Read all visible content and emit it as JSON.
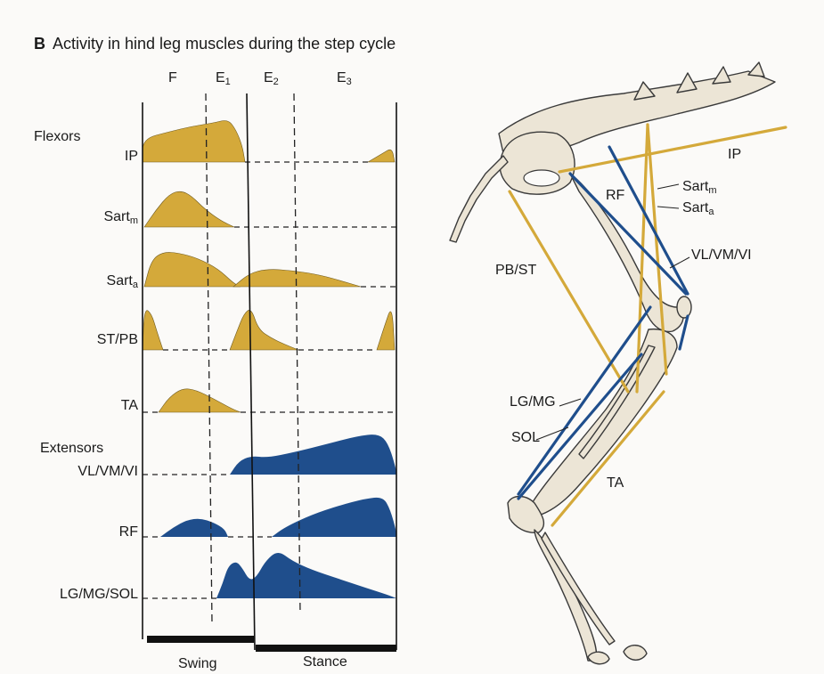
{
  "title": {
    "letter": "B",
    "text": "Activity in hind leg muscles during the step cycle"
  },
  "phases": [
    {
      "name": "F",
      "sub": ""
    },
    {
      "name": "E",
      "sub": "1"
    },
    {
      "name": "E",
      "sub": "2"
    },
    {
      "name": "E",
      "sub": "3"
    }
  ],
  "groups": {
    "flexors": "Flexors",
    "extensors": "Extensors"
  },
  "rows": [
    {
      "name": "IP",
      "sub": "",
      "type": "flexor"
    },
    {
      "name": "Sart",
      "sub": "m",
      "type": "flexor"
    },
    {
      "name": "Sart",
      "sub": "a",
      "type": "flexor"
    },
    {
      "name": "ST/PB",
      "sub": "",
      "type": "flexor"
    },
    {
      "name": "TA",
      "sub": "",
      "type": "flexor"
    },
    {
      "name": "VL/VM/VI",
      "sub": "",
      "type": "extensor"
    },
    {
      "name": "RF",
      "sub": "",
      "type": "extensor"
    },
    {
      "name": "LG/MG/SOL",
      "sub": "",
      "type": "extensor"
    }
  ],
  "cycle": {
    "swing": "Swing",
    "stance": "Stance"
  },
  "leg_labels": {
    "ip": "IP",
    "rf": "RF",
    "sartm": {
      "name": "Sart",
      "sub": "m"
    },
    "sarta": {
      "name": "Sart",
      "sub": "a"
    },
    "vl": "VL/VM/VI",
    "pbst": "PB/ST",
    "lgmg": "LG/MG",
    "sol": "SOL",
    "ta": "TA"
  },
  "colors": {
    "flexor": "#d4a93a",
    "extensor": "#1f4e8c",
    "bone": "#ece5d6",
    "bone_outline": "#3a3a3a",
    "bar": "#111111"
  }
}
